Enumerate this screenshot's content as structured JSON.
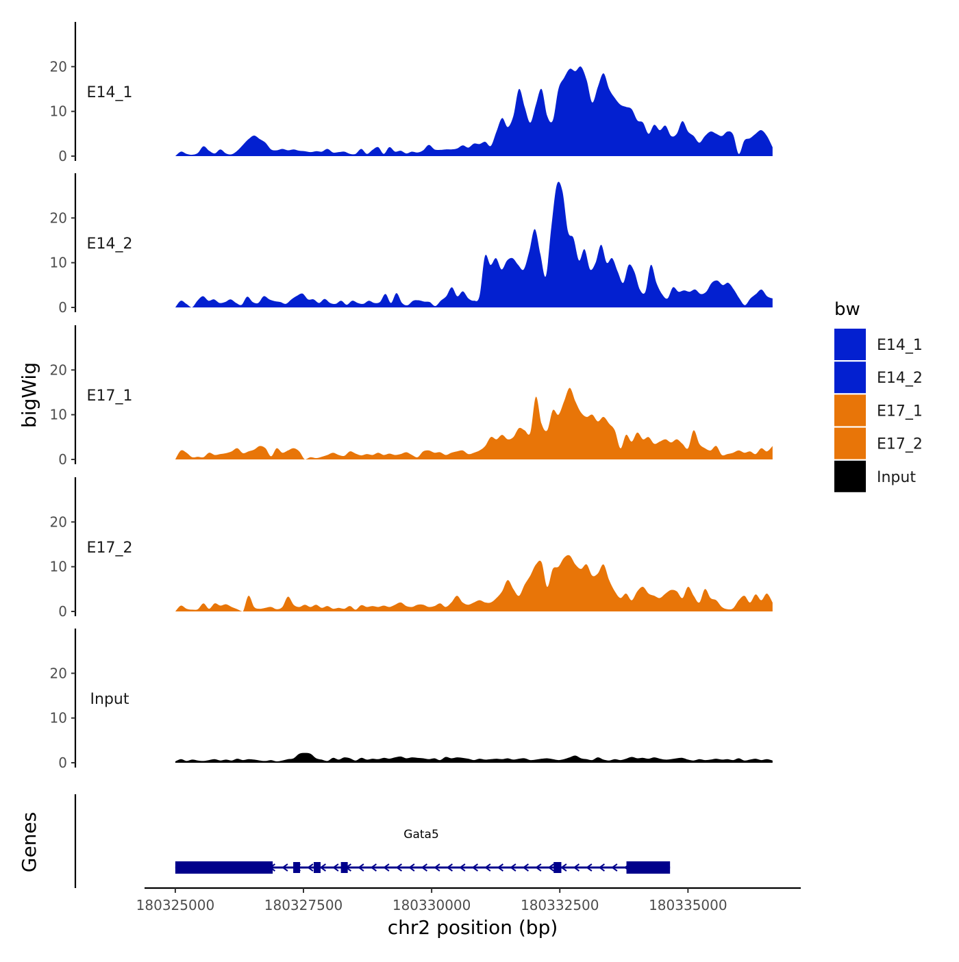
{
  "chart_data": {
    "type": "area",
    "title": "",
    "xlabel": "chr2 position (bp)",
    "ylabel": "bigWig",
    "xlim": [
      180324400,
      180337200
    ],
    "ylim": [
      0,
      30
    ],
    "x_ticks": [
      180325000,
      180327500,
      180330000,
      180332500,
      180335000
    ],
    "y_ticks": [
      0,
      10,
      20
    ],
    "region_start": 180325000,
    "region_end": 180336650,
    "legend": {
      "title": "bw",
      "placement": "right",
      "entries": [
        {
          "label": "E14_1",
          "color": "#0320d0"
        },
        {
          "label": "E14_2",
          "color": "#0320d0"
        },
        {
          "label": "E17_1",
          "color": "#e87508"
        },
        {
          "label": "E17_2",
          "color": "#e87508"
        },
        {
          "label": "Input",
          "color": "#000000"
        }
      ]
    },
    "series": [
      {
        "name": "E14_1",
        "color": "#0320d0",
        "values": [
          0,
          1,
          0.5,
          0.3,
          0.7,
          2.2,
          1.2,
          0.6,
          1.5,
          0.6,
          0.4,
          1.2,
          2.5,
          3.8,
          4.6,
          3.8,
          3.0,
          1.5,
          1.3,
          1.6,
          1.3,
          1.5,
          1.2,
          1.1,
          0.9,
          1.1,
          1.0,
          1.6,
          0.8,
          0.9,
          1.0,
          0.5,
          0.5,
          1.6,
          0.5,
          1.4,
          2.0,
          0.5,
          2.0,
          1.0,
          1.2,
          0.6,
          1.0,
          0.8,
          1.3,
          2.5,
          1.5,
          1.4,
          1.5,
          1.5,
          1.7,
          2.4,
          1.9,
          2.8,
          2.7,
          3.2,
          2.3,
          5.5,
          8.5,
          6.5,
          9.0,
          15.0,
          11.0,
          7.5,
          11.5,
          15.0,
          9.0,
          8.0,
          15.0,
          17.5,
          19.5,
          19.0,
          20.0,
          17.0,
          12.0,
          15.5,
          18.5,
          15.0,
          13.0,
          11.5,
          11.0,
          10.5,
          8.0,
          7.5,
          5.0,
          7.0,
          5.8,
          6.8,
          4.5,
          5.0,
          7.8,
          5.5,
          4.5,
          3.0,
          4.5,
          5.5,
          5.0,
          4.5,
          5.5,
          4.8,
          0.5,
          3.5,
          4.0,
          5.0,
          5.8,
          4.5,
          2.0
        ]
      },
      {
        "name": "E14_2",
        "color": "#0320d0",
        "values": [
          0,
          1.5,
          0.8,
          0,
          1.5,
          2.5,
          1.5,
          1.8,
          1.0,
          1.2,
          1.8,
          1.0,
          0.6,
          2.4,
          1.2,
          1.0,
          2.5,
          1.8,
          1.4,
          1.2,
          0.8,
          1.8,
          2.6,
          3.1,
          1.8,
          1.8,
          1.0,
          1.9,
          1.0,
          0.8,
          1.5,
          0.6,
          1.5,
          1.0,
          0.8,
          1.5,
          1.0,
          1.2,
          3.0,
          1.0,
          3.2,
          1.0,
          0.5,
          1.5,
          1.6,
          1.3,
          1.2,
          0.3,
          1.5,
          2.5,
          4.5,
          2.5,
          3.6,
          2.0,
          1.5,
          2.5,
          11.5,
          9.5,
          11.0,
          8.5,
          10.5,
          11.0,
          9.5,
          8.5,
          12.5,
          17.5,
          12.0,
          7.0,
          18.0,
          27.5,
          26.0,
          17.0,
          15.5,
          10.5,
          13.0,
          8.5,
          10.0,
          14.0,
          10.0,
          11.0,
          8.0,
          5.5,
          9.5,
          8.0,
          4.0,
          3.5,
          9.5,
          5.5,
          3.0,
          2.0,
          4.5,
          3.5,
          3.8,
          3.5,
          4.0,
          3.0,
          3.5,
          5.5,
          6.0,
          5.0,
          5.5,
          4.0,
          2.0,
          0.5,
          2.0,
          3.0,
          4.0,
          2.5,
          2.0
        ]
      },
      {
        "name": "E17_1",
        "color": "#e87508",
        "values": [
          0,
          2,
          1.5,
          0.5,
          0.6,
          0.5,
          1.5,
          1.0,
          1.2,
          1.4,
          1.8,
          2.5,
          1.4,
          1.8,
          2.2,
          3.0,
          2.5,
          0.7,
          2.5,
          1.5,
          2.0,
          2.5,
          1.8,
          0,
          0.5,
          0.3,
          0.6,
          1.0,
          1.5,
          1.0,
          0.8,
          1.8,
          1.3,
          0.9,
          1.2,
          1.0,
          1.5,
          1.0,
          1.3,
          1.0,
          1.2,
          1.6,
          1.0,
          0.5,
          1.8,
          2.0,
          1.5,
          1.6,
          1.0,
          1.5,
          1.8,
          2.0,
          1.2,
          1.5,
          2.0,
          3.0,
          5.0,
          4.5,
          5.5,
          4.5,
          5.0,
          7.0,
          6.5,
          6.0,
          14.0,
          8.0,
          6.5,
          11.0,
          10.0,
          13.0,
          16.0,
          13.0,
          10.5,
          9.5,
          10.0,
          8.5,
          9.5,
          8.0,
          6.5,
          2.5,
          5.5,
          4.0,
          6.0,
          4.5,
          5.0,
          3.5,
          4.0,
          4.5,
          3.8,
          4.5,
          3.5,
          2.5,
          6.5,
          3.5,
          2.5,
          2.0,
          3.0,
          1.0,
          1.2,
          1.5,
          2.0,
          1.5,
          1.8,
          1.2,
          2.5,
          1.8,
          3.0
        ]
      },
      {
        "name": "E17_2",
        "color": "#e87508",
        "values": [
          0,
          1.3,
          0.6,
          0.4,
          0.5,
          1.8,
          0.6,
          1.8,
          1.3,
          1.6,
          1.0,
          0.5,
          0,
          3.5,
          1.0,
          0.6,
          0.8,
          1.0,
          0.5,
          1.0,
          3.3,
          1.5,
          1.0,
          1.5,
          1.0,
          1.5,
          0.8,
          1.2,
          0.6,
          0.8,
          0.6,
          1.2,
          0.4,
          1.4,
          1.0,
          1.2,
          1.0,
          1.3,
          1.0,
          1.5,
          2.0,
          1.2,
          1.0,
          1.5,
          1.5,
          1.0,
          1.2,
          1.8,
          1.0,
          2.0,
          3.5,
          2.0,
          1.5,
          2.0,
          2.5,
          2.0,
          2.0,
          3.0,
          4.5,
          7.0,
          5.0,
          3.5,
          6.0,
          8.0,
          10.5,
          11.0,
          5.5,
          9.5,
          10.0,
          12.0,
          12.5,
          10.5,
          9.5,
          10.5,
          8.0,
          8.5,
          10.5,
          7.0,
          4.5,
          3.0,
          4.0,
          2.5,
          4.5,
          5.5,
          4.0,
          3.5,
          3.0,
          4.0,
          4.8,
          4.5,
          3.0,
          5.5,
          3.5,
          2.0,
          5.0,
          3.0,
          2.5,
          1.0,
          0.5,
          0.7,
          2.5,
          3.5,
          2.0,
          3.8,
          2.5,
          4.0,
          2.0
        ]
      },
      {
        "name": "Input",
        "color": "#000000",
        "values": [
          0.3,
          0.8,
          0.4,
          0.7,
          0.5,
          0.4,
          0.6,
          0.8,
          0.5,
          0.7,
          0.5,
          0.9,
          0.6,
          0.8,
          0.7,
          0.5,
          0.4,
          0.6,
          0.3,
          0.5,
          0.8,
          1.0,
          2.0,
          2.2,
          2.0,
          1.0,
          0.7,
          0.4,
          1.1,
          0.7,
          1.2,
          1.0,
          0.5,
          1.1,
          0.7,
          0.9,
          0.8,
          1.1,
          0.9,
          1.2,
          1.4,
          1.0,
          1.2,
          1.1,
          1.0,
          0.8,
          1.0,
          0.6,
          1.3,
          1.0,
          1.2,
          1.1,
          0.9,
          0.6,
          0.9,
          0.7,
          0.8,
          0.9,
          0.8,
          1.0,
          0.7,
          0.9,
          1.0,
          0.6,
          0.7,
          0.9,
          1.0,
          0.8,
          0.6,
          0.8,
          1.2,
          1.6,
          1.0,
          0.8,
          0.6,
          1.2,
          0.7,
          0.5,
          0.8,
          0.6,
          0.9,
          1.3,
          1.0,
          1.1,
          0.9,
          1.2,
          0.9,
          0.7,
          0.8,
          1.0,
          1.1,
          0.7,
          0.5,
          0.8,
          0.6,
          0.7,
          0.9,
          0.7,
          0.8,
          0.6,
          1.0,
          0.5,
          0.7,
          0.9,
          0.6,
          0.8,
          0.5
        ]
      }
    ],
    "genes": {
      "track_label": "Genes",
      "color": "#00008b",
      "items": [
        {
          "name": "Gata5",
          "strand": "-",
          "start": 180325000,
          "end": 180334650,
          "exons": [
            {
              "start": 180325000,
              "end": 180326900
            },
            {
              "start": 180327300,
              "end": 180327420
            },
            {
              "start": 180327700,
              "end": 180327800
            },
            {
              "start": 180328230,
              "end": 180328350
            },
            {
              "start": 180332380,
              "end": 180332530
            },
            {
              "start": 180333800,
              "end": 180334650
            }
          ]
        }
      ]
    }
  }
}
